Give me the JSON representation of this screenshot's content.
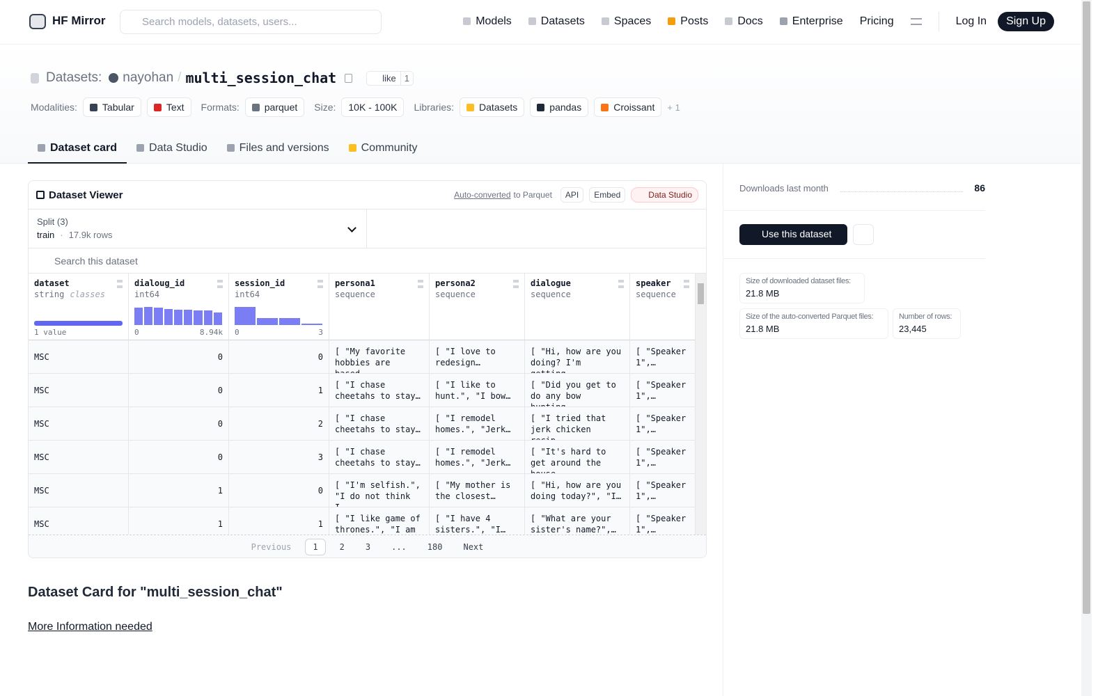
{
  "nav": {
    "brand": "HF Mirror",
    "search_placeholder": "Search models, datasets, users...",
    "links": [
      "Models",
      "Datasets",
      "Spaces",
      "Posts",
      "Docs",
      "Enterprise",
      "Pricing"
    ],
    "login": "Log In",
    "signup": "Sign Up"
  },
  "header": {
    "section": "Datasets:",
    "owner": "nayohan",
    "separator": "/",
    "name": "multi_session_chat",
    "like": "like",
    "likes": 1,
    "tag_groups": [
      {
        "label": "Modalities:",
        "items": [
          "Tabular",
          "Text"
        ]
      },
      {
        "label": "Formats:",
        "items": [
          "parquet"
        ]
      },
      {
        "label": "Size:",
        "items": [
          "10K - 100K"
        ]
      },
      {
        "label": "Libraries:",
        "items": [
          "Datasets",
          "pandas",
          "Croissant"
        ],
        "more": "+ 1"
      }
    ]
  },
  "tabs": [
    "Dataset card",
    "Data Studio",
    "Files and versions",
    "Community"
  ],
  "viewer": {
    "title": "Dataset Viewer",
    "auto_converted": "Auto-converted",
    "to_parquet": "to Parquet",
    "buttons": [
      "API",
      "Embed",
      "Data Studio"
    ],
    "split_label": "Split (3)",
    "split": "train",
    "split_separator": "·",
    "split_rows": "17.9k rows",
    "search_placeholder": "Search this dataset",
    "columns": [
      {
        "name": "dataset",
        "type": "string",
        "note": "classes",
        "summary": "1 value"
      },
      {
        "name": "dialoug_id",
        "type": "int64",
        "min": 0,
        "max": "8.94k",
        "histogram": [
          23,
          24,
          23,
          21,
          20,
          20,
          19,
          19,
          17
        ]
      },
      {
        "name": "session_id",
        "type": "int64",
        "min": 0,
        "max": 3,
        "histogram": [
          25,
          10,
          10,
          2
        ]
      },
      {
        "name": "persona1",
        "type": "sequence"
      },
      {
        "name": "persona2",
        "type": "sequence"
      },
      {
        "name": "dialogue",
        "type": "sequence"
      },
      {
        "name": "speaker",
        "type": "sequence"
      }
    ],
    "rows": [
      [
        "MSC",
        0,
        0,
        "[ \"My favorite hobbies are based…",
        "[ \"I love to redesign…",
        "[ \"Hi, how are you doing? I'm getting…",
        "[ \"Speaker 1\",…"
      ],
      [
        "MSC",
        0,
        1,
        "[ \"I chase cheetahs to stay…",
        "[ \"I like to hunt.\", \"I bow…",
        "[ \"Did you get to do any bow hunting…",
        "[ \"Speaker 1\",…"
      ],
      [
        "MSC",
        0,
        2,
        "[ \"I chase cheetahs to stay…",
        "[ \"I remodel homes.\", \"Jerk…",
        "[ \"I tried that jerk chicken recip…",
        "[ \"Speaker 1\",…"
      ],
      [
        "MSC",
        0,
        3,
        "[ \"I chase cheetahs to stay…",
        "[ \"I remodel homes.\", \"Jerk…",
        "[ \"It's hard to get around the house…",
        "[ \"Speaker 1\",…"
      ],
      [
        "MSC",
        1,
        0,
        "[ \"I'm selfish.\", \"I do not think I…",
        "[ \"My mother is the closest…",
        "[ \"Hi, how are you doing today?\", \"I…",
        "[ \"Speaker 1\",…"
      ],
      [
        "MSC",
        1,
        1,
        "[ \"I like game of thrones.\", \"I am …",
        "[ \"I have 4 sisters.\", \"I…",
        "[ \"What are your sister's name?\",…",
        "[ \"Speaker 1\",…"
      ]
    ],
    "pagination": {
      "previous": "Previous",
      "pages": [
        "1",
        "2",
        "3",
        "...",
        "180"
      ],
      "next": "Next"
    }
  },
  "sidebar": {
    "downloads_label": "Downloads last month",
    "downloads": 86,
    "use_button": "Use this dataset",
    "stats": [
      {
        "label": "Size of downloaded dataset files:",
        "value": "21.8 MB"
      },
      {
        "label": "Size of the auto-converted Parquet files:",
        "value": "21.8 MB"
      },
      {
        "label": "Number of rows:",
        "value": "23,445"
      }
    ]
  },
  "card": {
    "title": "Dataset Card for \"multi_session_chat\"",
    "link": "More Information needed"
  }
}
